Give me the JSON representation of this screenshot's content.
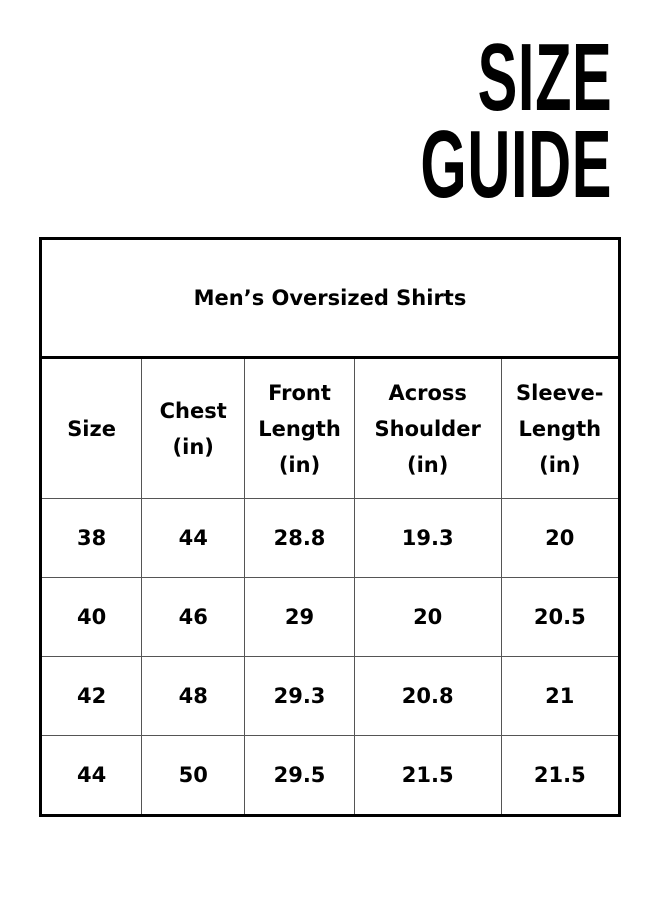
{
  "title": {
    "line1": "SIZE",
    "line2": "GUIDE"
  },
  "table": {
    "caption": "Men’s Oversized Shirts",
    "headers": [
      [
        "Size"
      ],
      [
        "Chest",
        "(in)"
      ],
      [
        "Front",
        "Length",
        "(in)"
      ],
      [
        "Across",
        "Shoulder",
        "(in)"
      ],
      [
        "Sleeve-",
        "Length",
        "(in)"
      ]
    ],
    "rows": [
      [
        "38",
        "44",
        "28.8",
        "19.3",
        "20"
      ],
      [
        "40",
        "46",
        "29",
        "20",
        "20.5"
      ],
      [
        "42",
        "48",
        "29.3",
        "20.8",
        "21"
      ],
      [
        "44",
        "50",
        "29.5",
        "21.5",
        "21.5"
      ]
    ]
  }
}
